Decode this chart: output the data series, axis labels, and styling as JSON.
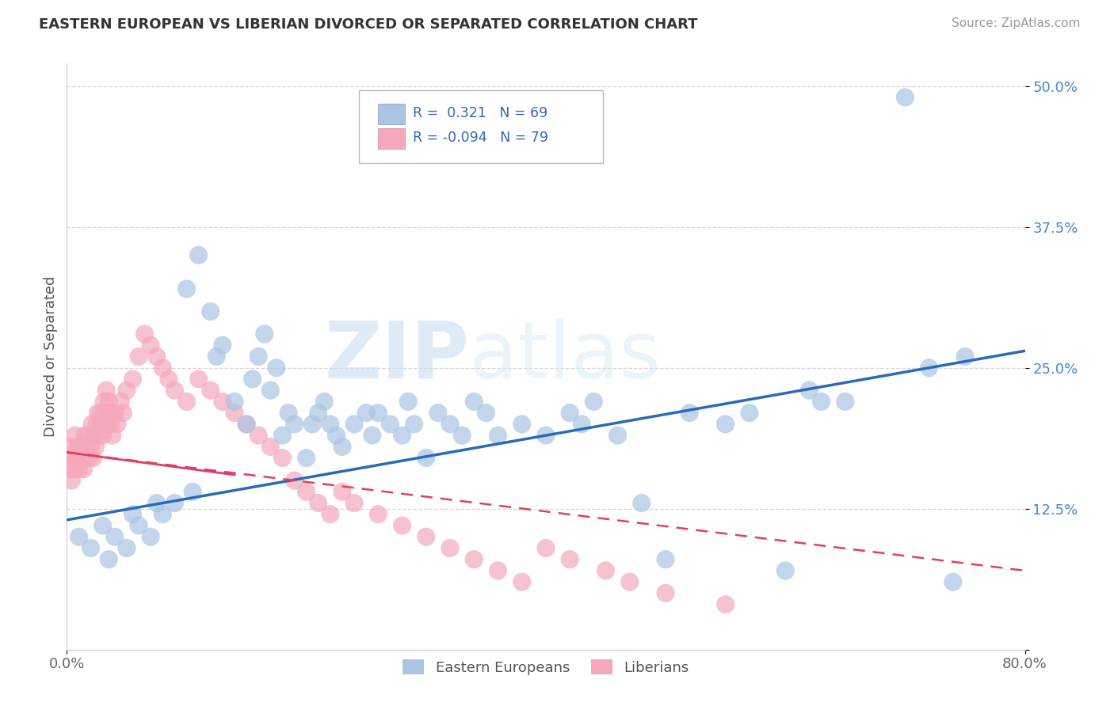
{
  "title": "EASTERN EUROPEAN VS LIBERIAN DIVORCED OR SEPARATED CORRELATION CHART",
  "source": "Source: ZipAtlas.com",
  "ylabel": "Divorced or Separated",
  "legend_bottom": [
    "Eastern Europeans",
    "Liberians"
  ],
  "r_blue": 0.321,
  "n_blue": 69,
  "r_pink": -0.094,
  "n_pink": 79,
  "blue_color": "#aac4e2",
  "pink_color": "#f5a8bb",
  "blue_line_color": "#2a6aba",
  "pink_line_color": "#e04060",
  "xlim": [
    0.0,
    0.8
  ],
  "ylim": [
    0.0,
    0.52
  ],
  "ytick_positions": [
    0.0,
    0.125,
    0.25,
    0.375,
    0.5
  ],
  "ytick_labels": [
    "",
    "12.5%",
    "25.0%",
    "37.5%",
    "50.0%"
  ],
  "blue_trendline": [
    [
      0.0,
      0.115
    ],
    [
      0.8,
      0.265
    ]
  ],
  "pink_trendline": [
    [
      0.0,
      0.175
    ],
    [
      0.8,
      0.07
    ]
  ],
  "watermark_zip": "ZIP",
  "watermark_atlas": "atlas",
  "background_color": "#ffffff",
  "grid_color": "#cccccc",
  "blue_scatter_x": [
    0.01,
    0.02,
    0.03,
    0.035,
    0.04,
    0.05,
    0.055,
    0.06,
    0.07,
    0.075,
    0.08,
    0.09,
    0.1,
    0.105,
    0.11,
    0.12,
    0.125,
    0.13,
    0.14,
    0.15,
    0.155,
    0.16,
    0.165,
    0.17,
    0.175,
    0.18,
    0.185,
    0.19,
    0.2,
    0.205,
    0.21,
    0.215,
    0.22,
    0.225,
    0.23,
    0.24,
    0.25,
    0.255,
    0.26,
    0.27,
    0.28,
    0.285,
    0.29,
    0.3,
    0.31,
    0.32,
    0.33,
    0.34,
    0.35,
    0.36,
    0.38,
    0.4,
    0.42,
    0.43,
    0.44,
    0.46,
    0.48,
    0.5,
    0.52,
    0.55,
    0.57,
    0.6,
    0.62,
    0.63,
    0.65,
    0.7,
    0.72,
    0.74,
    0.75
  ],
  "blue_scatter_y": [
    0.1,
    0.09,
    0.11,
    0.08,
    0.1,
    0.09,
    0.12,
    0.11,
    0.1,
    0.13,
    0.12,
    0.13,
    0.32,
    0.14,
    0.35,
    0.3,
    0.26,
    0.27,
    0.22,
    0.2,
    0.24,
    0.26,
    0.28,
    0.23,
    0.25,
    0.19,
    0.21,
    0.2,
    0.17,
    0.2,
    0.21,
    0.22,
    0.2,
    0.19,
    0.18,
    0.2,
    0.21,
    0.19,
    0.21,
    0.2,
    0.19,
    0.22,
    0.2,
    0.17,
    0.21,
    0.2,
    0.19,
    0.22,
    0.21,
    0.19,
    0.2,
    0.19,
    0.21,
    0.2,
    0.22,
    0.19,
    0.13,
    0.08,
    0.21,
    0.2,
    0.21,
    0.07,
    0.23,
    0.22,
    0.22,
    0.49,
    0.25,
    0.06,
    0.26
  ],
  "pink_scatter_x": [
    0.001,
    0.002,
    0.003,
    0.004,
    0.005,
    0.006,
    0.007,
    0.008,
    0.009,
    0.01,
    0.011,
    0.012,
    0.013,
    0.014,
    0.015,
    0.016,
    0.017,
    0.018,
    0.019,
    0.02,
    0.021,
    0.022,
    0.023,
    0.024,
    0.025,
    0.026,
    0.027,
    0.028,
    0.029,
    0.03,
    0.031,
    0.032,
    0.033,
    0.034,
    0.035,
    0.036,
    0.037,
    0.038,
    0.04,
    0.042,
    0.045,
    0.047,
    0.05,
    0.055,
    0.06,
    0.065,
    0.07,
    0.075,
    0.08,
    0.085,
    0.09,
    0.1,
    0.11,
    0.12,
    0.13,
    0.14,
    0.15,
    0.16,
    0.17,
    0.18,
    0.19,
    0.2,
    0.21,
    0.22,
    0.23,
    0.24,
    0.26,
    0.28,
    0.3,
    0.32,
    0.34,
    0.36,
    0.38,
    0.4,
    0.42,
    0.45,
    0.47,
    0.5,
    0.55
  ],
  "pink_scatter_y": [
    0.17,
    0.16,
    0.18,
    0.15,
    0.17,
    0.16,
    0.19,
    0.17,
    0.18,
    0.16,
    0.17,
    0.18,
    0.17,
    0.16,
    0.19,
    0.18,
    0.17,
    0.19,
    0.17,
    0.18,
    0.2,
    0.17,
    0.19,
    0.18,
    0.2,
    0.21,
    0.19,
    0.2,
    0.21,
    0.19,
    0.22,
    0.21,
    0.23,
    0.2,
    0.22,
    0.21,
    0.2,
    0.19,
    0.21,
    0.2,
    0.22,
    0.21,
    0.23,
    0.24,
    0.26,
    0.28,
    0.27,
    0.26,
    0.25,
    0.24,
    0.23,
    0.22,
    0.24,
    0.23,
    0.22,
    0.21,
    0.2,
    0.19,
    0.18,
    0.17,
    0.15,
    0.14,
    0.13,
    0.12,
    0.14,
    0.13,
    0.12,
    0.11,
    0.1,
    0.09,
    0.08,
    0.07,
    0.06,
    0.09,
    0.08,
    0.07,
    0.06,
    0.05,
    0.04
  ]
}
